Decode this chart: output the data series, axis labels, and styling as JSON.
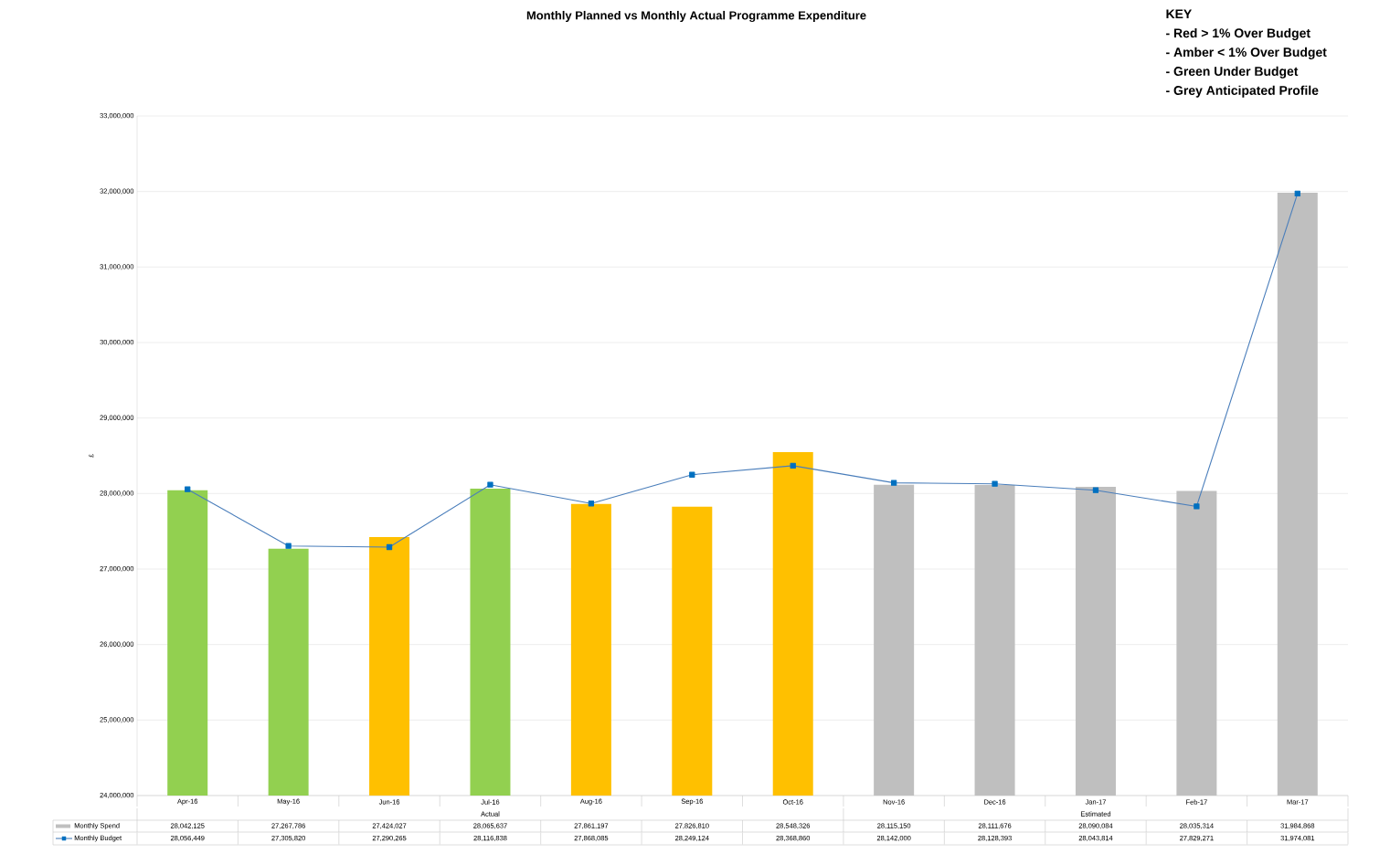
{
  "chart_data": {
    "type": "bar",
    "title": "Monthly Planned vs Monthly Actual Programme Expenditure",
    "ylabel": "£",
    "categories": [
      "Apr-16",
      "May-16",
      "Jun-16",
      "Jul-16",
      "Aug-16",
      "Sep-16",
      "Oct-16",
      "Nov-16",
      "Dec-16",
      "Jan-17",
      "Feb-17",
      "Mar-17"
    ],
    "series": [
      {
        "name": "Monthly Spend",
        "color": "#bfbfbf",
        "colors": [
          "#92d050",
          "#92d050",
          "#ffc000",
          "#92d050",
          "#ffc000",
          "#ffc000",
          "#ffc000",
          "#bfbfbf",
          "#bfbfbf",
          "#bfbfbf",
          "#bfbfbf",
          "#bfbfbf"
        ],
        "values": [
          28042125,
          27267786,
          27424027,
          28065637,
          27861197,
          27826810,
          28548326,
          28115150,
          28111676,
          28090084,
          28035314,
          31984868
        ],
        "value_labels": [
          "28,042,125",
          "27,267,786",
          "27,424,027",
          "28,065,637",
          "27,861,197",
          "27,826,810",
          "28,548,326",
          "28,115,150",
          "28,111,676",
          "28,090,084",
          "28,035,314",
          "31,984,868"
        ]
      },
      {
        "name": "Monthly Budget",
        "type": "line",
        "color": "#4a7ebb",
        "marker": "square",
        "values": [
          28056449,
          27305820,
          27290265,
          28116838,
          27868085,
          28249124,
          28368860,
          28142000,
          28128393,
          28043814,
          27829271,
          31974081
        ],
        "value_labels": [
          "28,056,449",
          "27,305,820",
          "27,290,265",
          "28,116,838",
          "27,868,085",
          "28,249,124",
          "28,368,860",
          "28,142,000",
          "28,128,393",
          "28,043,814",
          "27,829,271",
          "31,974,081"
        ]
      }
    ],
    "ylim": [
      24000000,
      33000000
    ],
    "yticks": [
      {
        "value": 24000000,
        "label": "24,000,000"
      },
      {
        "value": 25000000,
        "label": "25,000,000"
      },
      {
        "value": 26000000,
        "label": "26,000,000"
      },
      {
        "value": 27000000,
        "label": "27,000,000"
      },
      {
        "value": 28000000,
        "label": "28,000,000"
      },
      {
        "value": 29000000,
        "label": "29,000,000"
      },
      {
        "value": 30000000,
        "label": "30,000,000"
      },
      {
        "value": 31000000,
        "label": "31,000,000"
      },
      {
        "value": 32000000,
        "label": "32,000,000"
      },
      {
        "value": 33000000,
        "label": "33,000,000"
      }
    ],
    "grid": "y",
    "legend": "bottom",
    "annotations": [
      "Actual",
      "Estimated",
      "KEY",
      "- Red > 1% Over Budget",
      "- Amber < 1% Over Budget",
      "- Green Under Budget",
      "- Grey Anticipated Profile"
    ]
  }
}
